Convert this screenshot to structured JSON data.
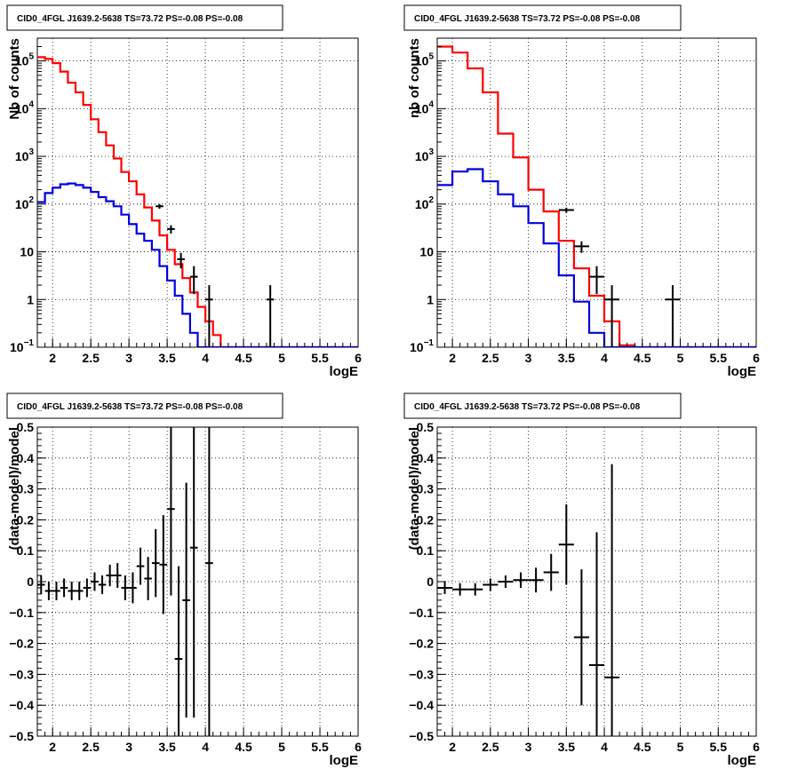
{
  "chart_data": [
    {
      "type": "step-histogram",
      "title": "CID0_4FGL J1639.2-5638 TS=73.72 PS=-0.08 PS=-0.08",
      "xlabel": "logE",
      "ylabel": "Nb of counts",
      "xlim": [
        1.8,
        6
      ],
      "ylim": [
        0.1,
        300000
      ],
      "yscale": "log",
      "grid": true,
      "x_ticks": [
        "2",
        "2.5",
        "3",
        "3.5",
        "4",
        "4.5",
        "5",
        "5.5",
        "6"
      ],
      "y_ticks": [
        "10^-1",
        "1",
        "10",
        "10^2",
        "10^3",
        "10^4",
        "10^5"
      ],
      "bin_edges": [
        1.8,
        1.9,
        2.0,
        2.1,
        2.2,
        2.3,
        2.4,
        2.5,
        2.6,
        2.7,
        2.8,
        2.9,
        3.0,
        3.1,
        3.2,
        3.3,
        3.4,
        3.5,
        3.6,
        3.7,
        3.8,
        3.9,
        4.0,
        4.1,
        4.2,
        4.3,
        4.4,
        4.5,
        4.6,
        4.7,
        4.8,
        4.9,
        5.0,
        5.1,
        5.2,
        5.3,
        5.4,
        5.5,
        5.6,
        5.7,
        5.8,
        5.9,
        6.0
      ],
      "series": [
        {
          "color": "#ff0000",
          "values": [
            120000,
            110000,
            90000,
            60000,
            35000,
            22000,
            12000,
            6000,
            3200,
            1700,
            900,
            470,
            300,
            160,
            85,
            45,
            22,
            11,
            5.5,
            2.8,
            1.4,
            0.7,
            0.35,
            0.18,
            0.09,
            0,
            0,
            0,
            0,
            0,
            0,
            0,
            0,
            0,
            0,
            0,
            0,
            0,
            0,
            0,
            0,
            0
          ]
        },
        {
          "color": "#0000dd",
          "values": [
            110,
            170,
            220,
            260,
            270,
            250,
            220,
            180,
            140,
            115,
            90,
            60,
            38,
            24,
            17,
            11,
            5,
            2.5,
            1.2,
            0.5,
            0.2,
            0.09,
            0,
            0,
            0,
            0,
            0,
            0,
            0,
            0,
            0,
            0,
            0,
            0,
            0,
            0,
            0,
            0,
            0,
            0,
            0,
            0
          ]
        }
      ],
      "data_points": [
        {
          "x": 3.4,
          "y": 90,
          "xerr": 0.05,
          "yerr": [
            10,
            10
          ]
        },
        {
          "x": 3.55,
          "y": 30,
          "xerr": 0.05,
          "yerr": [
            6,
            6
          ]
        },
        {
          "x": 3.68,
          "y": 7,
          "xerr": 0.05,
          "yerr": [
            2.5,
            2.5
          ]
        },
        {
          "x": 3.85,
          "y": 3,
          "xerr": 0.05,
          "yerr": [
            1.7,
            2.0
          ]
        },
        {
          "x": 4.05,
          "y": 1,
          "xerr": 0.05,
          "yerr": [
            1,
            1
          ]
        },
        {
          "x": 4.85,
          "y": 1,
          "xerr": 0.05,
          "yerr": [
            1,
            1
          ]
        }
      ]
    },
    {
      "type": "step-histogram",
      "title": "CID0_4FGL J1639.2-5638 TS=73.72 PS=-0.08 PS=-0.08",
      "xlabel": "logE",
      "ylabel": "nb of counts",
      "xlim": [
        1.8,
        6
      ],
      "ylim": [
        0.1,
        300000
      ],
      "yscale": "log",
      "grid": true,
      "x_ticks": [
        "2",
        "2.5",
        "3",
        "3.5",
        "4",
        "4.5",
        "5",
        "5.5",
        "6"
      ],
      "y_ticks": [
        "10^-1",
        "1",
        "10",
        "10^2",
        "10^3",
        "10^4",
        "10^5"
      ],
      "bin_edges": [
        1.8,
        2.0,
        2.2,
        2.4,
        2.6,
        2.8,
        3.0,
        3.2,
        3.4,
        3.6,
        3.8,
        4.0,
        4.2,
        4.4,
        4.6,
        4.8,
        5.0,
        5.2,
        5.4,
        5.6,
        5.8,
        6.0
      ],
      "series": [
        {
          "color": "#ff0000",
          "values": [
            200000,
            150000,
            70000,
            22000,
            3000,
            950,
            200,
            70,
            17,
            4.5,
            1.2,
            0.35,
            0.11,
            0,
            0,
            0,
            0,
            0,
            0,
            0,
            0
          ]
        },
        {
          "color": "#0000dd",
          "values": [
            250,
            480,
            540,
            300,
            160,
            90,
            40,
            15,
            3.2,
            0.9,
            0.2,
            0,
            0,
            0,
            0,
            0,
            0,
            0,
            0,
            0,
            0
          ]
        }
      ],
      "data_points": [
        {
          "x": 3.5,
          "y": 75,
          "xerr": 0.1,
          "yerr": [
            9,
            9
          ]
        },
        {
          "x": 3.7,
          "y": 13,
          "xerr": 0.1,
          "yerr": [
            3.5,
            3.5
          ]
        },
        {
          "x": 3.9,
          "y": 3,
          "xerr": 0.1,
          "yerr": [
            1.7,
            2.0
          ]
        },
        {
          "x": 4.1,
          "y": 1,
          "xerr": 0.1,
          "yerr": [
            1,
            1
          ]
        },
        {
          "x": 4.9,
          "y": 1,
          "xerr": 0.1,
          "yerr": [
            1,
            1
          ]
        }
      ]
    },
    {
      "type": "scatter-errorbar",
      "title": "CID0_4FGL J1639.2-5638 TS=73.72 PS=-0.08 PS=-0.08",
      "xlabel": "logE",
      "ylabel": "(data-model)/model",
      "xlim": [
        1.8,
        6
      ],
      "ylim": [
        -0.5,
        0.5
      ],
      "grid": true,
      "x_ticks": [
        "2",
        "2.5",
        "3",
        "3.5",
        "4",
        "4.5",
        "5",
        "5.5",
        "6"
      ],
      "y_ticks": [
        "−0.5",
        "−0.4",
        "−0.3",
        "−0.2",
        "−0.1",
        "0",
        "0.1",
        "0.2",
        "0.3",
        "0.4",
        "0.5"
      ],
      "data_points": [
        {
          "x": 1.85,
          "y": -0.01,
          "xerr": 0.05,
          "yerr": 0.03
        },
        {
          "x": 1.95,
          "y": -0.03,
          "xerr": 0.05,
          "yerr": 0.03
        },
        {
          "x": 2.05,
          "y": -0.03,
          "xerr": 0.05,
          "yerr": 0.03
        },
        {
          "x": 2.15,
          "y": -0.02,
          "xerr": 0.05,
          "yerr": 0.03
        },
        {
          "x": 2.25,
          "y": -0.03,
          "xerr": 0.05,
          "yerr": 0.03
        },
        {
          "x": 2.35,
          "y": -0.03,
          "xerr": 0.05,
          "yerr": 0.03
        },
        {
          "x": 2.45,
          "y": -0.02,
          "xerr": 0.05,
          "yerr": 0.03
        },
        {
          "x": 2.55,
          "y": 0.0,
          "xerr": 0.05,
          "yerr": 0.03
        },
        {
          "x": 2.65,
          "y": -0.01,
          "xerr": 0.05,
          "yerr": 0.03
        },
        {
          "x": 2.75,
          "y": 0.02,
          "xerr": 0.05,
          "yerr": 0.035
        },
        {
          "x": 2.85,
          "y": 0.02,
          "xerr": 0.05,
          "yerr": 0.04
        },
        {
          "x": 2.95,
          "y": -0.02,
          "xerr": 0.05,
          "yerr": 0.04
        },
        {
          "x": 3.05,
          "y": -0.02,
          "xerr": 0.05,
          "yerr": 0.05
        },
        {
          "x": 3.15,
          "y": 0.05,
          "xerr": 0.05,
          "yerr": 0.06
        },
        {
          "x": 3.25,
          "y": 0.01,
          "xerr": 0.05,
          "yerr": 0.07
        },
        {
          "x": 3.35,
          "y": 0.06,
          "xerr": 0.05,
          "yerr": 0.11
        },
        {
          "x": 3.45,
          "y": 0.055,
          "xerr": 0.05,
          "yerr": 0.16
        },
        {
          "x": 3.55,
          "y": 0.235,
          "xerr": 0.05,
          "yerr": 0.28
        },
        {
          "x": 3.65,
          "y": -0.25,
          "xerr": 0.05,
          "yerr": 0.3
        },
        {
          "x": 3.75,
          "y": -0.06,
          "xerr": 0.05,
          "yerr": 0.38
        },
        {
          "x": 3.85,
          "y": 0.11,
          "xerr": 0.05,
          "yerr": 0.55
        },
        {
          "x": 4.05,
          "y": 0.06,
          "xerr": 0.05,
          "yerr": 0.9
        }
      ]
    },
    {
      "type": "scatter-errorbar",
      "title": "CID0_4FGL J1639.2-5638 TS=73.72 PS=-0.08 PS=-0.08",
      "xlabel": "logE",
      "ylabel": "(data-model)/model",
      "xlim": [
        1.8,
        6
      ],
      "ylim": [
        -0.5,
        0.5
      ],
      "grid": true,
      "x_ticks": [
        "2",
        "2.5",
        "3",
        "3.5",
        "4",
        "4.5",
        "5",
        "5.5",
        "6"
      ],
      "y_ticks": [
        "−0.5",
        "−0.4",
        "−0.3",
        "−0.2",
        "−0.1",
        "0",
        "0.1",
        "0.2",
        "0.3",
        "0.4",
        "0.5"
      ],
      "data_points": [
        {
          "x": 1.9,
          "y": -0.02,
          "xerr": 0.1,
          "yerr": 0.02
        },
        {
          "x": 2.1,
          "y": -0.025,
          "xerr": 0.1,
          "yerr": 0.02
        },
        {
          "x": 2.3,
          "y": -0.025,
          "xerr": 0.1,
          "yerr": 0.02
        },
        {
          "x": 2.5,
          "y": -0.01,
          "xerr": 0.1,
          "yerr": 0.02
        },
        {
          "x": 2.7,
          "y": 0.0,
          "xerr": 0.1,
          "yerr": 0.02
        },
        {
          "x": 2.9,
          "y": 0.005,
          "xerr": 0.1,
          "yerr": 0.025
        },
        {
          "x": 3.1,
          "y": 0.005,
          "xerr": 0.1,
          "yerr": 0.04
        },
        {
          "x": 3.3,
          "y": 0.03,
          "xerr": 0.1,
          "yerr": 0.06
        },
        {
          "x": 3.5,
          "y": 0.12,
          "xerr": 0.1,
          "yerr": 0.13
        },
        {
          "x": 3.7,
          "y": -0.18,
          "xerr": 0.1,
          "yerr": 0.22
        },
        {
          "x": 3.9,
          "y": -0.27,
          "xerr": 0.1,
          "yerr": 0.43
        },
        {
          "x": 4.1,
          "y": -0.31,
          "xerr": 0.1,
          "yerr": 0.69
        }
      ]
    }
  ]
}
